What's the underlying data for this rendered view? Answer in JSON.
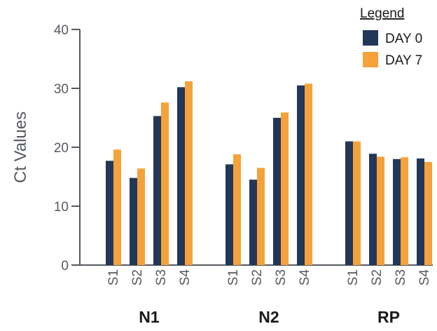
{
  "chart_data": {
    "type": "bar",
    "ylabel": "Ct Values",
    "xlabel": "",
    "ylim": [
      0,
      40
    ],
    "yticks": [
      0,
      10,
      20,
      30,
      40
    ],
    "grid": false,
    "legend": {
      "title": "Legend",
      "placement": "top-right"
    },
    "groups": [
      {
        "name": "N1",
        "categories": [
          "S1",
          "S2",
          "S3",
          "S4"
        ]
      },
      {
        "name": "N2",
        "categories": [
          "S1",
          "S2",
          "S3",
          "S4"
        ]
      },
      {
        "name": "RP",
        "categories": [
          "S1",
          "S2",
          "S3",
          "S4"
        ]
      }
    ],
    "series": [
      {
        "name": "DAY 0",
        "color": "#233759",
        "values": [
          [
            17.7,
            14.8,
            25.3,
            30.2
          ],
          [
            17.1,
            14.5,
            25.0,
            30.5
          ],
          [
            21.0,
            18.9,
            18.0,
            18.1
          ]
        ]
      },
      {
        "name": "DAY 7",
        "color": "#f5a23a",
        "values": [
          [
            19.6,
            16.4,
            27.6,
            31.2
          ],
          [
            18.8,
            16.5,
            25.9,
            30.8
          ],
          [
            21.0,
            18.4,
            18.3,
            17.5
          ]
        ]
      }
    ]
  }
}
